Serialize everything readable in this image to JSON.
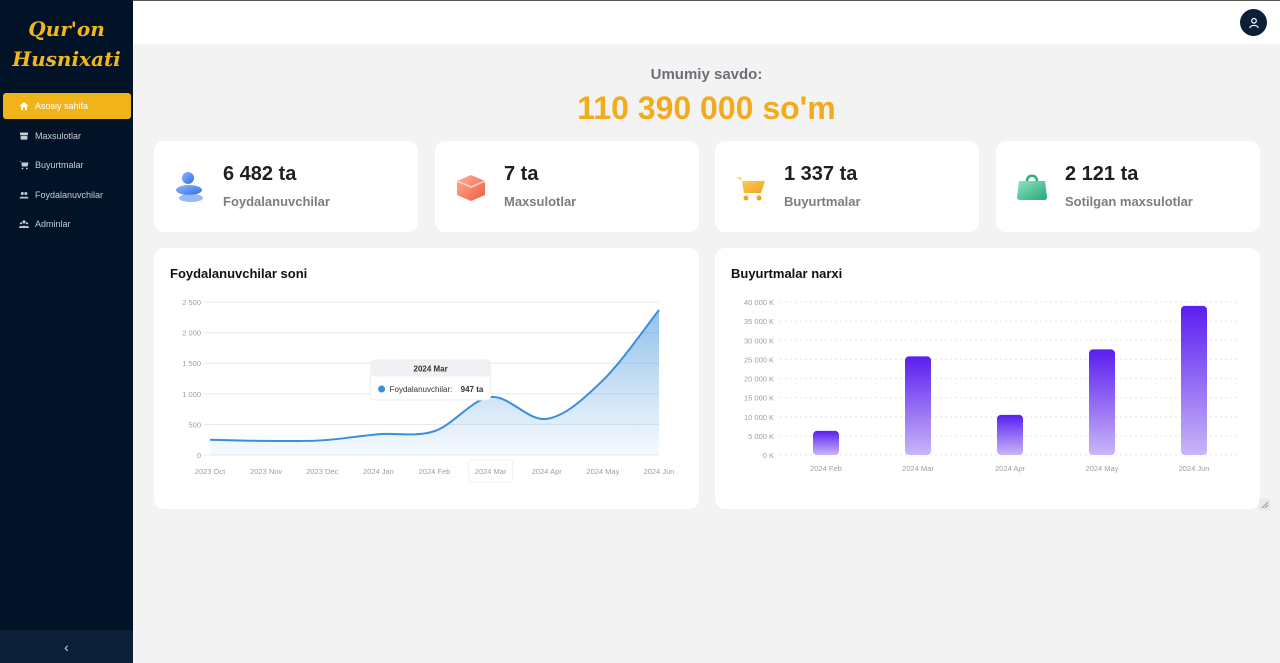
{
  "app": {
    "title_line1": "Qur'on",
    "title_line2": "Husnixati"
  },
  "sidebar": {
    "items": [
      {
        "label": "Asosiy sahifa",
        "icon": "home-icon",
        "active": true
      },
      {
        "label": "Maxsulotlar",
        "icon": "box-icon",
        "active": false
      },
      {
        "label": "Buyurtmalar",
        "icon": "cart-icon",
        "active": false
      },
      {
        "label": "Foydalanuvchilar",
        "icon": "users-icon",
        "active": false
      },
      {
        "label": "Adminlar",
        "icon": "admins-icon",
        "active": false
      }
    ],
    "collapse_glyph": "‹"
  },
  "header": {
    "avatar_icon": "user-icon"
  },
  "summary": {
    "label": "Umumiy savdo:",
    "value": "110 390 000 so'm"
  },
  "stats": [
    {
      "value": "6 482 ta",
      "label": "Foydalanuvchilar",
      "icon": "users-3d-icon"
    },
    {
      "value": "7 ta",
      "label": "Maxsulotlar",
      "icon": "box-3d-icon"
    },
    {
      "value": "1 337 ta",
      "label": "Buyurtmalar",
      "icon": "cart-3d-icon"
    },
    {
      "value": "2 121 ta",
      "label": "Sotilgan maxsulotlar",
      "icon": "bag-3d-icon"
    }
  ],
  "colors": {
    "accent": "#f0b31a",
    "sidebar": "#031327",
    "line": "#3a8fdb",
    "bar_top": "#5a1ef0",
    "bar_bottom": "#c9b6f7"
  },
  "chart_data": [
    {
      "type": "area",
      "title": "Foydalanuvchilar soni",
      "x": [
        "2023 Oct",
        "2023 Nov",
        "2023 Dec",
        "2024 Jan",
        "2024 Feb",
        "2024 Mar",
        "2024 Apr",
        "2024 May",
        "2024 Jun"
      ],
      "y_ticks": [
        "0",
        "500",
        "1 000",
        "1 500",
        "2 000",
        "2 500"
      ],
      "ylim": [
        0,
        2500
      ],
      "series": [
        {
          "name": "Foydalanuvchilar",
          "values": [
            250,
            230,
            240,
            340,
            390,
            947,
            590,
            1220,
            2370
          ]
        }
      ],
      "tooltip": {
        "title": "2024 Mar",
        "label": "Foydalanuvchilar:",
        "value": "947 ta"
      },
      "grid": true
    },
    {
      "type": "bar",
      "title": "Buyurtmalar narxi",
      "categories": [
        "2024 Feb",
        "2024 Mar",
        "2024 Apr",
        "2024 May",
        "2024 Jun"
      ],
      "values": [
        6300,
        25800,
        10500,
        27600,
        39000
      ],
      "y_ticks": [
        "0 K",
        "5 000 K",
        "10 000 K",
        "15 000 K",
        "20 000 K",
        "25 000 K",
        "30 000 K",
        "35 000 K",
        "40 000 K"
      ],
      "ylim": [
        0,
        40000
      ],
      "grid": true
    }
  ]
}
